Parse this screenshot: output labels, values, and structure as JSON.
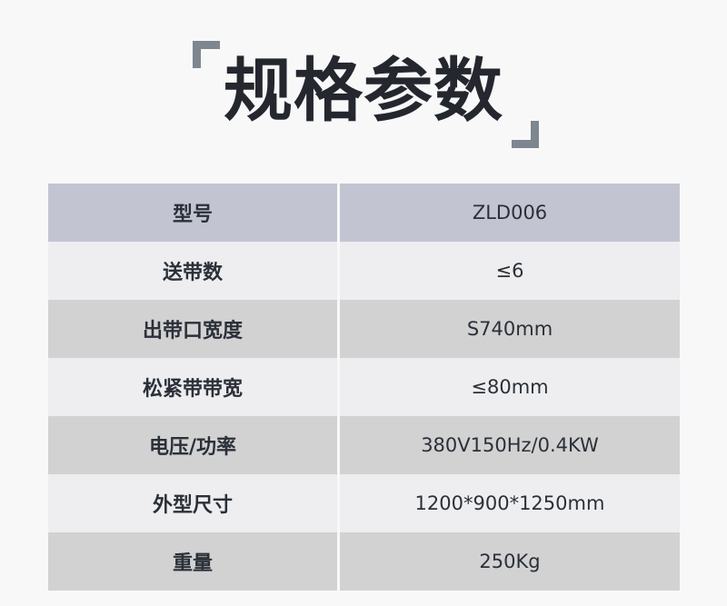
{
  "title": {
    "text": "规格参数"
  },
  "colors": {
    "page_background": "#f8f8f9",
    "title_text": "#24272e",
    "corner_bracket": "#7e868f",
    "header_row_background": "#c2c5d1",
    "gray_row_background": "#d2d2d3",
    "light_row_background": "#eeeef0",
    "table_text": "#2b3038"
  },
  "table": {
    "rows": [
      {
        "label": "型号",
        "value": "ZLD006"
      },
      {
        "label": "送带数",
        "value": "≤6"
      },
      {
        "label": "出带口宽度",
        "value": "S740mm"
      },
      {
        "label": "松紧带带宽",
        "value": "≤80mm"
      },
      {
        "label": "电压/功率",
        "value": "380V150Hz/0.4KW"
      },
      {
        "label": "外型尺寸",
        "value": "1200*900*1250mm"
      },
      {
        "label": "重量",
        "value": "250Kg"
      }
    ]
  }
}
